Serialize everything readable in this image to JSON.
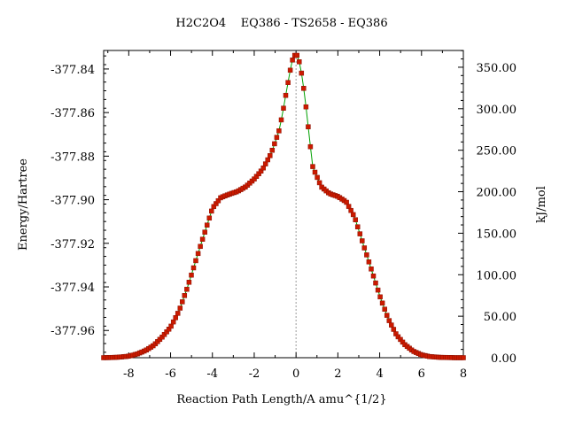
{
  "chart_data": {
    "type": "scatter",
    "title": "H2C2O4    EQ386 - TS2658 - EQ386",
    "xlabel": "Reaction Path Length/A amu^{1/2}",
    "ylabel_left": "Energy/Hartree",
    "ylabel_right": "kJ/mol",
    "xlim": [
      -9.2,
      8.0
    ],
    "ylim": [
      -377.9725,
      -377.8315
    ],
    "y2lim": [
      0.0,
      370.2
    ],
    "x_ticks": [
      -8,
      -6,
      -4,
      -2,
      0,
      2,
      4,
      6,
      8
    ],
    "x_tick_labels": [
      "-8",
      "-6",
      "-4",
      "-2",
      "0",
      "2",
      "4",
      "6",
      "8"
    ],
    "y_ticks": [
      -377.84,
      -377.86,
      -377.88,
      -377.9,
      -377.92,
      -377.94,
      -377.96
    ],
    "y_tick_labels": [
      "-377.84",
      "-377.86",
      "-377.88",
      "-377.90",
      "-377.92",
      "-377.94",
      "-377.96"
    ],
    "y2_ticks": [
      0,
      50,
      100,
      150,
      200,
      250,
      300,
      350
    ],
    "y2_tick_labels": [
      "0.00",
      "50.00",
      "100.00",
      "150.00",
      "200.00",
      "250.00",
      "300.00",
      "350.00"
    ],
    "ts_marker_x": 0.0,
    "grid": false,
    "colors": {
      "line": "#00a000",
      "marker": "#cc1a00",
      "ts_line": "#999999",
      "axes": "#000000"
    },
    "series": [
      {
        "x": [
          -9.2,
          -8.8,
          -8.4,
          -8.0,
          -7.6,
          -7.2,
          -6.8,
          -6.4,
          -6.0,
          -5.6,
          -5.2,
          -4.8,
          -4.4,
          -4.0,
          -3.6,
          -3.2,
          -2.8,
          -2.4,
          -2.0,
          -1.6,
          -1.2,
          -0.8,
          -0.6,
          -0.4,
          -0.2,
          0.0,
          0.2,
          0.4,
          0.6,
          0.8,
          1.2,
          1.6,
          2.0,
          2.4,
          2.8,
          3.2,
          3.6,
          4.0,
          4.4,
          4.8,
          5.2,
          5.6,
          6.0,
          6.4,
          6.8,
          7.2,
          7.6,
          8.0
        ],
        "y": [
          -377.9725,
          -377.9724,
          -377.9722,
          -377.9718,
          -377.9708,
          -377.9692,
          -377.9668,
          -377.963,
          -377.9585,
          -377.9512,
          -377.9405,
          -377.9282,
          -377.916,
          -377.904,
          -377.899,
          -377.8975,
          -377.8962,
          -377.894,
          -377.8905,
          -377.886,
          -377.879,
          -377.868,
          -377.858,
          -377.847,
          -377.8365,
          -377.8325,
          -377.838,
          -377.851,
          -377.868,
          -377.885,
          -377.894,
          -377.8972,
          -377.8985,
          -377.901,
          -377.908,
          -377.92,
          -377.932,
          -377.944,
          -377.9545,
          -377.962,
          -377.9665,
          -377.9695,
          -377.9712,
          -377.972,
          -377.9723,
          -377.9724,
          -377.9725,
          -377.9725
        ]
      }
    ]
  }
}
